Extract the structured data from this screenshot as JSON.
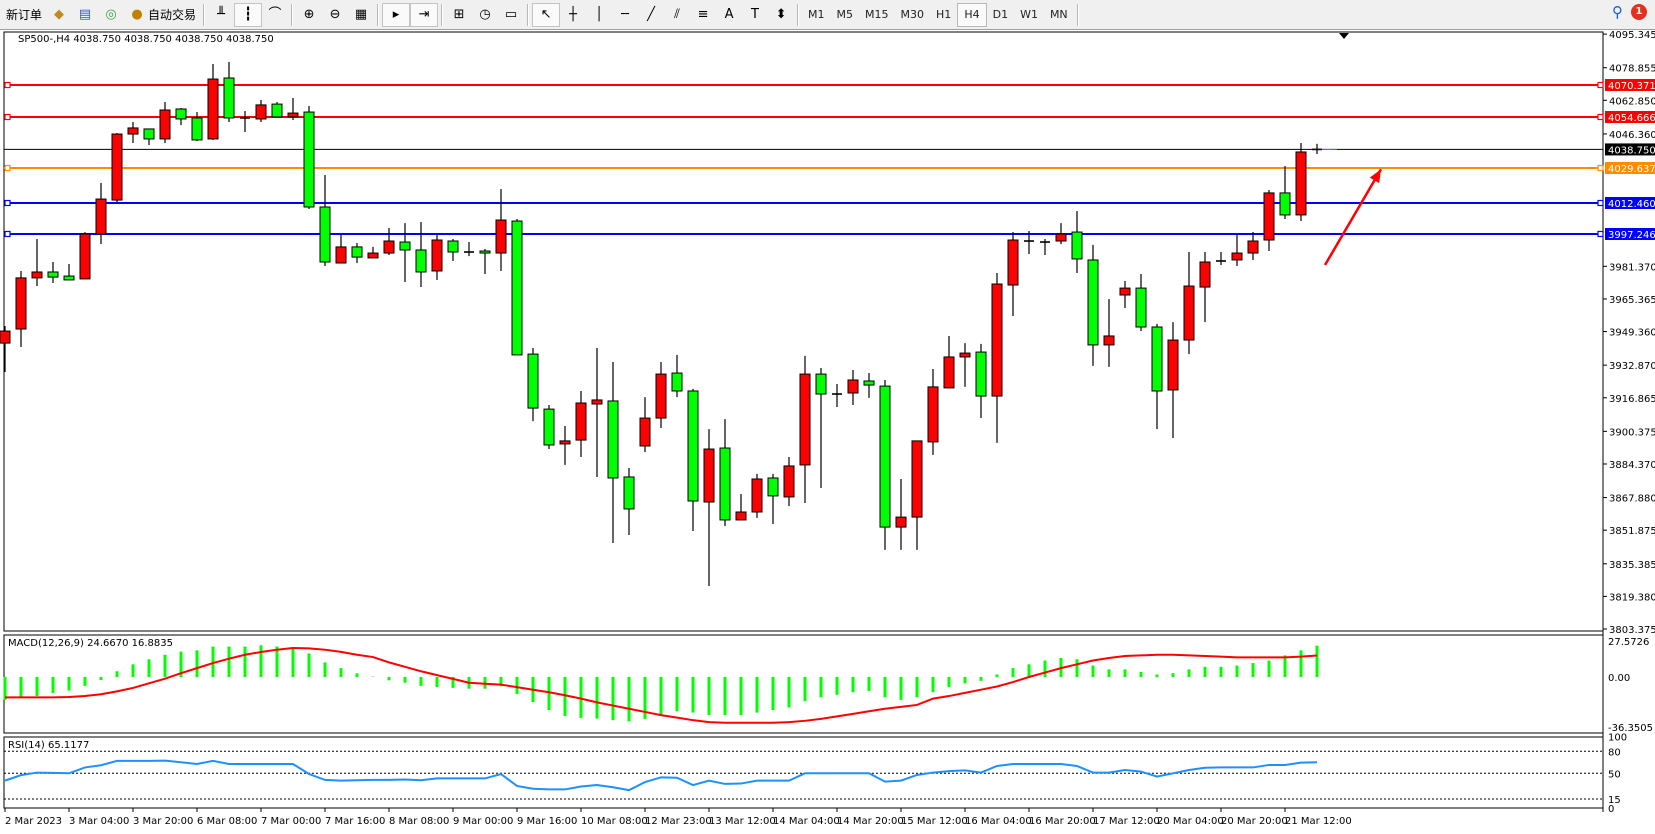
{
  "toolbar": {
    "new_order_label": "新订单",
    "auto_trading_label": "自动交易",
    "tools": [
      {
        "name": "market-watch-icon",
        "glyph": "◆"
      },
      {
        "name": "data-window-icon",
        "glyph": "▤"
      },
      {
        "name": "navigator-icon",
        "glyph": "◎"
      }
    ],
    "chart_tools": [
      {
        "name": "bar-chart-icon",
        "glyph": "╨"
      },
      {
        "name": "candlestick-icon",
        "glyph": "┇",
        "pressed": true
      },
      {
        "name": "line-chart-icon",
        "glyph": "⌒"
      },
      {
        "name": "zoom-in-icon",
        "glyph": "⊕"
      },
      {
        "name": "zoom-out-icon",
        "glyph": "⊖"
      },
      {
        "name": "tile-windows-icon",
        "glyph": "▦"
      },
      {
        "name": "auto-scroll-icon",
        "glyph": "▸",
        "pressed": true
      },
      {
        "name": "chart-shift-icon",
        "glyph": "⇥",
        "pressed": true
      },
      {
        "name": "indicators-icon",
        "glyph": "⊞"
      },
      {
        "name": "periods-icon",
        "glyph": "◷"
      },
      {
        "name": "templates-icon",
        "glyph": "▭"
      },
      {
        "name": "cursor-icon",
        "glyph": "↖",
        "pressed": true
      },
      {
        "name": "crosshair-icon",
        "glyph": "┼"
      },
      {
        "name": "vertical-line-icon",
        "glyph": "│"
      },
      {
        "name": "horizontal-line-icon",
        "glyph": "─"
      },
      {
        "name": "trendline-icon",
        "glyph": "╱"
      },
      {
        "name": "equidistant-channel-icon",
        "glyph": "⫽"
      },
      {
        "name": "fibonacci-icon",
        "glyph": "≡"
      },
      {
        "name": "text-icon",
        "glyph": "A"
      },
      {
        "name": "text-label-icon",
        "glyph": "T"
      },
      {
        "name": "arrows-icon",
        "glyph": "⬍"
      }
    ],
    "timeframes": [
      "M1",
      "M5",
      "M15",
      "M30",
      "H1",
      "H4",
      "D1",
      "W1",
      "MN"
    ],
    "active_timeframe": "H4",
    "notification_count": "1"
  },
  "chart_data": {
    "type": "candlestick",
    "title": "SP500-,H4  4038.750 4038.750 4038.750 4038.750",
    "up_color": "#ff0000",
    "down_color": "#00ff00",
    "y_range": [
      3803.375,
      4095.345
    ],
    "y_ticks": [
      "4095.345",
      "4078.855",
      "4062.850",
      "4046.360",
      "3981.370",
      "3965.365",
      "3949.360",
      "3932.870",
      "3916.865",
      "3900.375",
      "3884.370",
      "3867.880",
      "3851.875",
      "3835.385",
      "3819.380",
      "3803.375"
    ],
    "x_labels": [
      "2 Mar 2023",
      "3 Mar 04:00",
      "3 Mar 20:00",
      "6 Mar 08:00",
      "7 Mar 00:00",
      "7 Mar 16:00",
      "8 Mar 08:00",
      "9 Mar 00:00",
      "9 Mar 16:00",
      "10 Mar 08:00",
      "12 Mar 23:00",
      "13 Mar 12:00",
      "14 Mar 04:00",
      "14 Mar 20:00",
      "15 Mar 12:00",
      "16 Mar 04:00",
      "16 Mar 20:00",
      "17 Mar 12:00",
      "20 Mar 04:00",
      "20 Mar 20:00",
      "21 Mar 12:00"
    ],
    "x_label_every": 4,
    "ohlc": [
      [
        3943.7,
        3952.1,
        3929.5,
        3949.6
      ],
      [
        3950.6,
        3979.1,
        3941.8,
        3975.7
      ],
      [
        3975.7,
        3994.8,
        3971.7,
        3978.6
      ],
      [
        3978.6,
        3983.5,
        3973.2,
        3976.1
      ],
      [
        3976.6,
        3982.5,
        3974.7,
        3974.7
      ],
      [
        3975.2,
        3998.2,
        3975.2,
        3997.2
      ],
      [
        3997.2,
        4022.3,
        3992.3,
        4014.4
      ],
      [
        4013.9,
        4046.8,
        4012.9,
        4046.3
      ],
      [
        4046.3,
        4052.2,
        4041.9,
        4049.3
      ],
      [
        4048.8,
        4048.8,
        4040.9,
        4043.9
      ],
      [
        4043.9,
        4062.0,
        4041.9,
        4058.1
      ],
      [
        4058.6,
        4059.1,
        4050.7,
        4053.7
      ],
      [
        4054.2,
        4057.1,
        4042.9,
        4043.4
      ],
      [
        4043.9,
        4080.7,
        4043.4,
        4073.3
      ],
      [
        4073.8,
        4081.7,
        4052.2,
        4054.2
      ],
      [
        4054.2,
        4057.6,
        4047.3,
        4054.2
      ],
      [
        4053.7,
        4063.0,
        4052.2,
        4060.6
      ],
      [
        4061.0,
        4062.0,
        4054.7,
        4054.7
      ],
      [
        4054.7,
        4064.0,
        4053.2,
        4056.6
      ],
      [
        4057.1,
        4060.1,
        4009.5,
        4010.5
      ],
      [
        4010.5,
        4026.2,
        3981.5,
        3983.5
      ],
      [
        3983.0,
        3997.2,
        3983.0,
        3990.9
      ],
      [
        3990.9,
        3992.8,
        3983.0,
        3985.9
      ],
      [
        3985.5,
        3990.9,
        3985.5,
        3987.9
      ],
      [
        3987.9,
        4000.2,
        3986.9,
        3993.8
      ],
      [
        3993.3,
        4002.6,
        3973.7,
        3989.4
      ],
      [
        3989.4,
        4003.1,
        3971.2,
        3978.6
      ],
      [
        3979.1,
        3996.8,
        3974.7,
        3994.3
      ],
      [
        3993.8,
        3994.8,
        3984.0,
        3988.4
      ],
      [
        3988.4,
        3993.3,
        3986.4,
        3988.4
      ],
      [
        3988.9,
        3989.9,
        3977.6,
        3987.9
      ],
      [
        3987.9,
        4019.3,
        3979.1,
        4004.1
      ],
      [
        4003.6,
        4004.6,
        3937.9,
        3937.9
      ],
      [
        3938.3,
        3941.3,
        3905.4,
        3911.8
      ],
      [
        3911.3,
        3913.3,
        3891.7,
        3893.7
      ],
      [
        3894.2,
        3903.0,
        3883.9,
        3895.7
      ],
      [
        3896.1,
        3920.2,
        3887.8,
        3914.3
      ],
      [
        3913.8,
        3941.3,
        3878.0,
        3915.8
      ],
      [
        3915.3,
        3934.4,
        3845.6,
        3877.5
      ],
      [
        3878.0,
        3882.4,
        3849.5,
        3862.3
      ],
      [
        3893.2,
        3917.2,
        3890.2,
        3906.9
      ],
      [
        3906.9,
        3934.4,
        3902.0,
        3928.5
      ],
      [
        3929.0,
        3937.9,
        3917.2,
        3920.2
      ],
      [
        3920.2,
        3921.2,
        3851.5,
        3866.2
      ],
      [
        3865.7,
        3901.5,
        3824.5,
        3891.7
      ],
      [
        3892.2,
        3906.4,
        3853.9,
        3856.9
      ],
      [
        3856.9,
        3869.6,
        3856.9,
        3860.8
      ],
      [
        3860.8,
        3879.5,
        3857.9,
        3877.0
      ],
      [
        3877.5,
        3879.5,
        3854.9,
        3868.7
      ],
      [
        3868.2,
        3887.8,
        3863.7,
        3883.4
      ],
      [
        3883.9,
        3937.4,
        3865.2,
        3928.5
      ],
      [
        3928.5,
        3931.5,
        3872.6,
        3918.7
      ],
      [
        3918.7,
        3923.6,
        3912.3,
        3918.7
      ],
      [
        3919.2,
        3930.5,
        3913.3,
        3925.6
      ],
      [
        3925.1,
        3929.0,
        3916.8,
        3923.1
      ],
      [
        3922.6,
        3925.6,
        3842.2,
        3853.4
      ],
      [
        3853.4,
        3877.0,
        3842.2,
        3858.3
      ],
      [
        3858.3,
        3895.7,
        3842.2,
        3895.7
      ],
      [
        3895.2,
        3931.0,
        3888.8,
        3922.2
      ],
      [
        3921.7,
        3947.2,
        3921.7,
        3936.9
      ],
      [
        3936.9,
        3943.7,
        3922.2,
        3938.8
      ],
      [
        3939.3,
        3943.3,
        3906.9,
        3917.7
      ],
      [
        3917.7,
        3978.1,
        3894.7,
        3972.7
      ],
      [
        3972.2,
        3998.2,
        3957.0,
        3994.3
      ],
      [
        3993.8,
        3998.7,
        3987.4,
        3993.8
      ],
      [
        3993.3,
        3994.8,
        3986.9,
        3993.3
      ],
      [
        3993.8,
        4002.6,
        3992.3,
        3997.2
      ],
      [
        3998.2,
        4008.5,
        3978.1,
        3985.0
      ],
      [
        3984.5,
        3991.9,
        3932.5,
        3942.8
      ],
      [
        3942.8,
        3965.3,
        3932.0,
        3947.2
      ],
      [
        3967.3,
        3974.2,
        3960.9,
        3970.7
      ],
      [
        3970.7,
        3977.6,
        3949.6,
        3951.6
      ],
      [
        3951.6,
        3953.1,
        3901.5,
        3920.2
      ],
      [
        3920.7,
        3954.0,
        3897.1,
        3945.2
      ],
      [
        3945.2,
        3988.4,
        3938.3,
        3971.7
      ],
      [
        3971.2,
        3988.4,
        3954.0,
        3983.5
      ],
      [
        3984.0,
        3988.4,
        3982.0,
        3984.0
      ],
      [
        3984.5,
        3997.2,
        3981.5,
        3987.9
      ],
      [
        3987.9,
        3998.2,
        3984.5,
        3993.8
      ],
      [
        3994.3,
        4018.8,
        3988.9,
        4017.4
      ],
      [
        4017.4,
        4030.6,
        4004.6,
        4006.6
      ],
      [
        4006.6,
        4041.9,
        4003.6,
        4037.5
      ],
      [
        4038.75,
        4041.5,
        4036.5,
        4038.75
      ]
    ],
    "levels": [
      {
        "price": 4070.371,
        "label": "4070.371",
        "color": "#ff0000"
      },
      {
        "price": 4054.666,
        "label": "4054.666",
        "color": "#ff0000"
      },
      {
        "price": 4029.637,
        "label": "4029.637",
        "color": "#ff8c00"
      },
      {
        "price": 4012.46,
        "label": "4012.460",
        "color": "#0000ff"
      },
      {
        "price": 3997.246,
        "label": "3997.246",
        "color": "#0000ff"
      }
    ],
    "bid": {
      "price": 4038.75,
      "label": "4038.750",
      "color": "#000000"
    },
    "arrow": {
      "from": [
        82.5,
        3982
      ],
      "to": [
        86,
        4029
      ],
      "color": "#ff0000"
    },
    "macd": {
      "label": "MACD(12,26,9) 24.6670 16.8835",
      "y_range": [
        -36.3505,
        27.5726
      ],
      "y_ticks": [
        "27.5726",
        "0.00",
        "-36.3505"
      ],
      "hist_color": "#00ff00",
      "signal_color": "#ff0000",
      "histogram": [
        -18,
        -15.7,
        -15,
        -12.6,
        -10.7,
        -7,
        -2.4,
        4.5,
        10,
        13.9,
        17.5,
        20,
        21,
        24,
        24,
        24,
        25,
        24,
        23,
        18.6,
        11.5,
        7,
        2.9,
        0.3,
        -2.6,
        -4.5,
        -7,
        -7.9,
        -8.6,
        -9.2,
        -9.2,
        -7.3,
        -13.4,
        -19.7,
        -26,
        -30.7,
        -32.2,
        -32.7,
        -34,
        -35,
        -33,
        -30,
        -27,
        -28,
        -30,
        -30,
        -30,
        -28,
        -26,
        -24,
        -19,
        -16,
        -14,
        -12,
        -11,
        -16,
        -18,
        -16,
        -12,
        -8,
        -5,
        -3,
        2,
        7,
        10,
        13,
        15,
        14,
        9,
        6,
        6,
        4,
        2,
        3,
        6,
        8,
        8,
        9,
        11,
        13,
        17,
        21,
        24.667
      ],
      "signal": [
        -16,
        -16,
        -16,
        -16,
        -15.7,
        -15,
        -13.6,
        -11.3,
        -8.6,
        -5,
        -1.3,
        3,
        7,
        11,
        14.4,
        17.5,
        19.7,
        21.5,
        22.8,
        22.5,
        21.5,
        19.8,
        17.5,
        15.7,
        11.5,
        8,
        4.5,
        1.5,
        -1.5,
        -4.5,
        -5.3,
        -6,
        -8,
        -10,
        -12,
        -14.4,
        -17,
        -20,
        -22.5,
        -25,
        -27.5,
        -30,
        -32,
        -34,
        -35.5,
        -36,
        -36,
        -36,
        -36,
        -35.5,
        -34.5,
        -33,
        -31,
        -29,
        -27,
        -25,
        -23.5,
        -22,
        -17,
        -15,
        -12.5,
        -10,
        -7.5,
        -4,
        0,
        3.5,
        7,
        10,
        13,
        15,
        16.5,
        17,
        17.5,
        17.5,
        17,
        16.5,
        16,
        15.5,
        15.5,
        15.5,
        15.5,
        16,
        16.8835
      ]
    },
    "rsi": {
      "label": "RSI(14) 65.1177",
      "y_range": [
        0,
        100
      ],
      "levels": [
        80,
        50,
        15
      ],
      "y_ticks": [
        "100",
        "80",
        "50",
        "15",
        "0"
      ],
      "color": "#1e90ff",
      "values": [
        40,
        47.5,
        51,
        50.5,
        50,
        58,
        61,
        67,
        67,
        67,
        67.3,
        65,
        62.7,
        67,
        62.7,
        62.7,
        62.7,
        62.7,
        62.7,
        49,
        41,
        40,
        40.5,
        41,
        41,
        41.5,
        40.5,
        43,
        43,
        43,
        43,
        49,
        32.7,
        29,
        28,
        28,
        32,
        34,
        31,
        27,
        38,
        44.5,
        44,
        34,
        40,
        35.5,
        36,
        40,
        40,
        40,
        50,
        50,
        50,
        50,
        50,
        38.6,
        40,
        47.7,
        51,
        53,
        54,
        51,
        60,
        62.7,
        62.7,
        62.7,
        62.7,
        60,
        51,
        51,
        54.5,
        52.3,
        45.5,
        50,
        54.5,
        57.5,
        58,
        58,
        58,
        61.4,
        61.4,
        64.5,
        65.1177
      ]
    }
  }
}
